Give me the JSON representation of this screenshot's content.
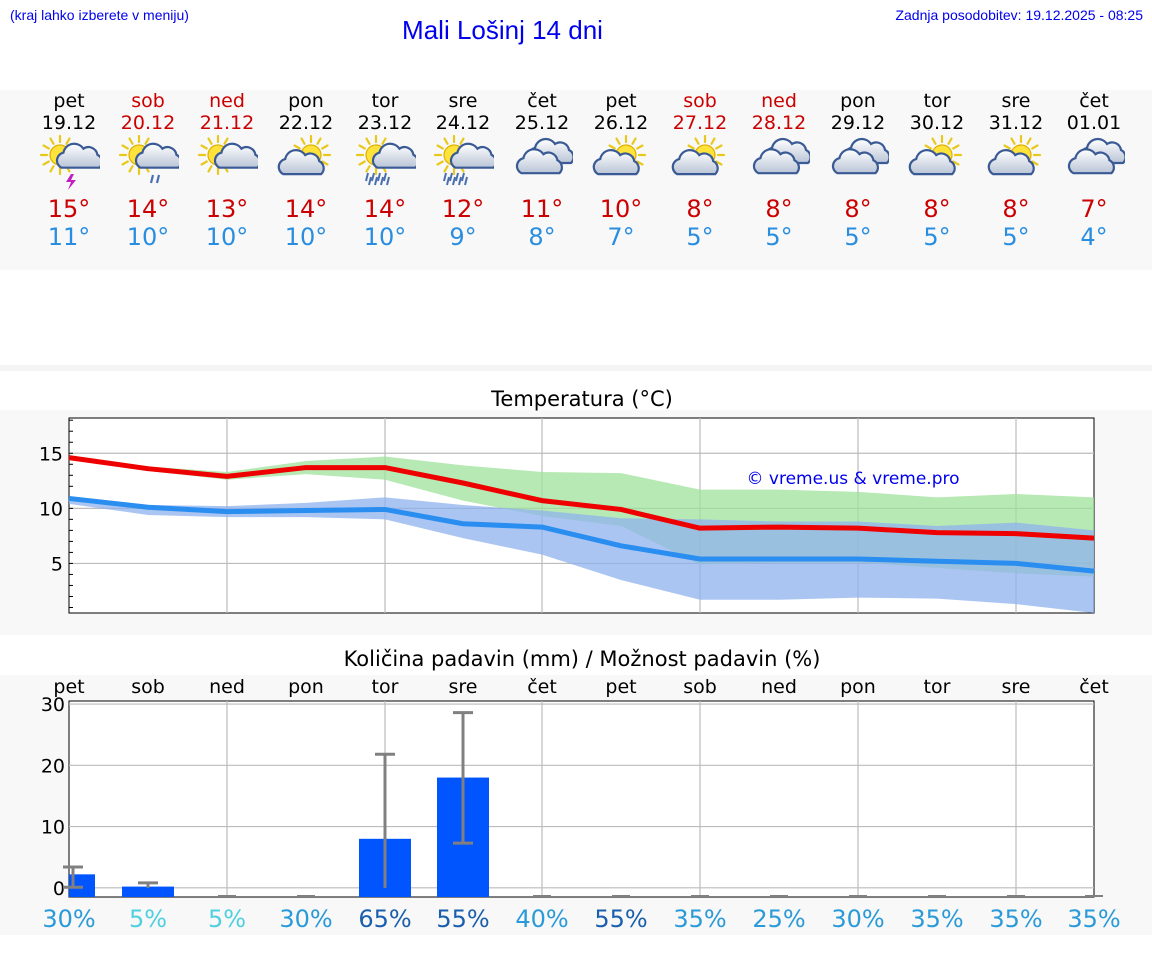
{
  "header": {
    "menu_hint": "(kraj lahko izberete v meniju)",
    "title": "Mali Lošinj 14 dni",
    "updated": "Zadnja posodobitev: 19.12.2025 - 08:25"
  },
  "days": [
    {
      "name": "pet",
      "date": "19.12",
      "max": "15°",
      "min": "11°",
      "icon": "sun-cloud-thunder-icon",
      "weekend": false
    },
    {
      "name": "sob",
      "date": "20.12",
      "max": "14°",
      "min": "10°",
      "icon": "sun-cloud-drizzle-icon",
      "weekend": true
    },
    {
      "name": "ned",
      "date": "21.12",
      "max": "13°",
      "min": "10°",
      "icon": "sun-cloud-icon",
      "weekend": true
    },
    {
      "name": "pon",
      "date": "22.12",
      "max": "14°",
      "min": "10°",
      "icon": "cloud-sun-icon",
      "weekend": false
    },
    {
      "name": "tor",
      "date": "23.12",
      "max": "14°",
      "min": "10°",
      "icon": "sun-cloud-rain-icon",
      "weekend": false
    },
    {
      "name": "sre",
      "date": "24.12",
      "max": "12°",
      "min": "9°",
      "icon": "sun-cloud-rain-icon",
      "weekend": false
    },
    {
      "name": "čet",
      "date": "25.12",
      "max": "11°",
      "min": "8°",
      "icon": "clouds-icon",
      "weekend": false
    },
    {
      "name": "pet",
      "date": "26.12",
      "max": "10°",
      "min": "7°",
      "icon": "cloud-sun-icon",
      "weekend": false
    },
    {
      "name": "sob",
      "date": "27.12",
      "max": "8°",
      "min": "5°",
      "icon": "cloud-sun-icon",
      "weekend": true
    },
    {
      "name": "ned",
      "date": "28.12",
      "max": "8°",
      "min": "5°",
      "icon": "clouds-icon",
      "weekend": true
    },
    {
      "name": "pon",
      "date": "29.12",
      "max": "8°",
      "min": "5°",
      "icon": "clouds-icon",
      "weekend": false
    },
    {
      "name": "tor",
      "date": "30.12",
      "max": "8°",
      "min": "5°",
      "icon": "cloud-sun-icon",
      "weekend": false
    },
    {
      "name": "sre",
      "date": "31.12",
      "max": "8°",
      "min": "5°",
      "icon": "cloud-sun-icon",
      "weekend": false
    },
    {
      "name": "čet",
      "date": "01.01",
      "max": "7°",
      "min": "4°",
      "icon": "clouds-icon",
      "weekend": false
    }
  ],
  "chart_data": [
    {
      "type": "line",
      "title": "Temperatura (°C)",
      "watermark": "© vreme.us & vreme.pro",
      "ylim": [
        0.5,
        18.2
      ],
      "yticks": [
        5,
        10,
        15
      ],
      "series": [
        {
          "name": "max",
          "color": "#ee0000",
          "values": [
            14.6,
            13.6,
            12.9,
            13.7,
            13.7,
            12.3,
            10.7,
            9.9,
            8.2,
            8.3,
            8.2,
            7.8,
            7.7,
            7.3
          ]
        },
        {
          "name": "min",
          "color": "#2a8ef0",
          "values": [
            10.9,
            10.1,
            9.7,
            9.8,
            9.9,
            8.6,
            8.3,
            6.6,
            5.4,
            5.4,
            5.4,
            5.2,
            5.0,
            4.3
          ]
        }
      ],
      "max_band": {
        "color": "#9ee29a",
        "low": [
          14.4,
          13.4,
          12.6,
          13.1,
          12.6,
          10.7,
          9.3,
          8.4,
          4.9,
          5.1,
          5.1,
          4.6,
          4.1,
          3.8
        ],
        "high": [
          14.8,
          13.8,
          13.3,
          14.3,
          14.7,
          13.9,
          13.3,
          13.2,
          11.7,
          11.7,
          11.5,
          11.0,
          11.3,
          11.0
        ]
      },
      "min_band": {
        "color": "#8fb1ee",
        "low": [
          10.4,
          9.4,
          9.2,
          9.2,
          9.0,
          7.3,
          5.8,
          3.5,
          1.7,
          1.7,
          1.9,
          1.8,
          1.3,
          0.5
        ],
        "high": [
          11.1,
          10.3,
          10.2,
          10.5,
          11.0,
          10.3,
          9.8,
          9.1,
          9.0,
          8.8,
          8.8,
          8.4,
          8.7,
          8.0
        ]
      }
    },
    {
      "type": "bar",
      "title": "Količina padavin (mm) / Možnost padavin (%)",
      "ylim": [
        -1.5,
        30.5
      ],
      "yticks": [
        0,
        10,
        20,
        30
      ],
      "categories": [
        "pet",
        "sob",
        "ned",
        "pon",
        "tor",
        "sre",
        "čet",
        "pet",
        "sob",
        "ned",
        "pon",
        "tor",
        "sre",
        "čet"
      ],
      "values": [
        2.2,
        0.2,
        0,
        0,
        8.0,
        18.0,
        0,
        0,
        0,
        0,
        0,
        0,
        0,
        0
      ],
      "err_low": [
        0.1,
        0,
        0,
        0,
        0,
        7.3,
        0,
        0,
        0,
        0,
        0,
        0,
        0,
        0
      ],
      "err_high": [
        3.4,
        0.8,
        0,
        0,
        21.8,
        28.6,
        0,
        0,
        0,
        0,
        0,
        0,
        0,
        0
      ],
      "probabilities": [
        "30%",
        "5%",
        "5%",
        "30%",
        "65%",
        "55%",
        "40%",
        "55%",
        "35%",
        "25%",
        "30%",
        "35%",
        "35%",
        "35%"
      ],
      "bar_color": "#0055ff"
    }
  ]
}
